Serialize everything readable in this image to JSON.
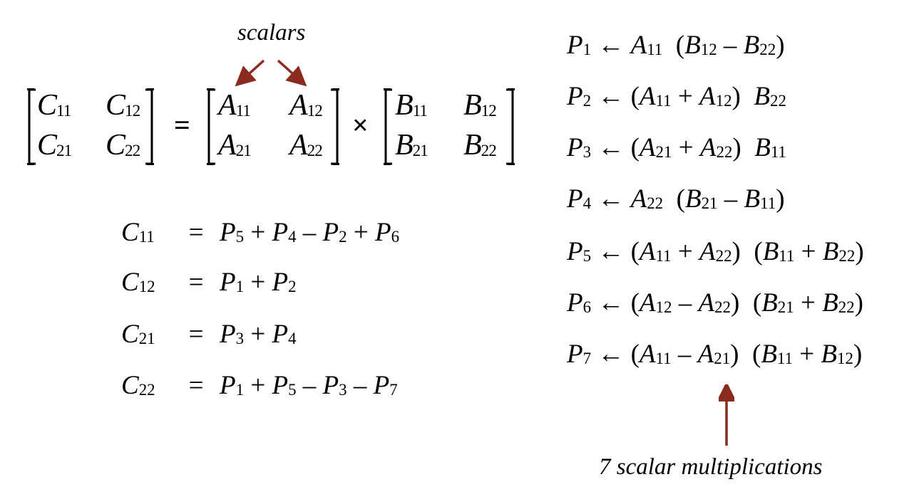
{
  "annotations": {
    "scalars": "scalars",
    "multiplications": "7 scalar multiplications",
    "arrow_color": "#8b2a1e"
  },
  "matrix_equation": {
    "equals": "=",
    "times": "×",
    "C": [
      [
        "C",
        "11",
        "C",
        "12"
      ],
      [
        "C",
        "21",
        "C",
        "22"
      ]
    ],
    "A": [
      [
        "A",
        "11",
        "A",
        "12"
      ],
      [
        "A",
        "21",
        "A",
        "22"
      ]
    ],
    "B": [
      [
        "B",
        "11",
        "B",
        "12"
      ],
      [
        "B",
        "21",
        "B",
        "22"
      ]
    ]
  },
  "c_equations": [
    {
      "lhs_var": "C",
      "lhs_sub": "11",
      "eq": "=",
      "rhs": [
        [
          "P",
          "5",
          " + "
        ],
        [
          "P",
          "4",
          " – "
        ],
        [
          "P",
          "2",
          " + "
        ],
        [
          "P",
          "6",
          ""
        ]
      ]
    },
    {
      "lhs_var": "C",
      "lhs_sub": "12",
      "eq": "=",
      "rhs": [
        [
          "P",
          "1",
          " + "
        ],
        [
          "P",
          "2",
          ""
        ]
      ]
    },
    {
      "lhs_var": "C",
      "lhs_sub": "21",
      "eq": "=",
      "rhs": [
        [
          "P",
          "3",
          " + "
        ],
        [
          "P",
          "4",
          ""
        ]
      ]
    },
    {
      "lhs_var": "C",
      "lhs_sub": "22",
      "eq": "=",
      "rhs": [
        [
          "P",
          "1",
          " + "
        ],
        [
          "P",
          "5",
          " – "
        ],
        [
          "P",
          "3",
          " – "
        ],
        [
          "P",
          "7",
          ""
        ]
      ]
    }
  ],
  "p_definitions": [
    {
      "var": "P",
      "sub": "1",
      "arrow": " ← ",
      "parts": [
        [
          "A",
          "11",
          ""
        ],
        [
          "",
          "",
          "  ("
        ],
        [
          "B",
          "12",
          " – "
        ],
        [
          "B",
          "22",
          ")"
        ]
      ]
    },
    {
      "var": "P",
      "sub": "2",
      "arrow": " ← ",
      "parts": [
        [
          "",
          "",
          "("
        ],
        [
          "A",
          "11",
          " + "
        ],
        [
          "A",
          "12",
          ")  "
        ],
        [
          "B",
          "22",
          ""
        ]
      ]
    },
    {
      "var": "P",
      "sub": "3",
      "arrow": " ← ",
      "parts": [
        [
          "",
          "",
          "("
        ],
        [
          "A",
          "21",
          " + "
        ],
        [
          "A",
          "22",
          ")  "
        ],
        [
          "B",
          "11",
          ""
        ]
      ]
    },
    {
      "var": "P",
      "sub": "4",
      "arrow": " ← ",
      "parts": [
        [
          "A",
          "22",
          ""
        ],
        [
          "",
          "",
          "  ("
        ],
        [
          "B",
          "21",
          " – "
        ],
        [
          "B",
          "11",
          ")"
        ]
      ]
    },
    {
      "var": "P",
      "sub": "5",
      "arrow": " ← ",
      "parts": [
        [
          "",
          "",
          "("
        ],
        [
          "A",
          "11",
          " + "
        ],
        [
          "A",
          "22",
          ")  ("
        ],
        [
          "B",
          "11",
          " + "
        ],
        [
          "B",
          "22",
          ")"
        ]
      ]
    },
    {
      "var": "P",
      "sub": "6",
      "arrow": " ← ",
      "parts": [
        [
          "",
          "",
          "("
        ],
        [
          "A",
          "12",
          " – "
        ],
        [
          "A",
          "22",
          ")  ("
        ],
        [
          "B",
          "21",
          " + "
        ],
        [
          "B",
          "22",
          ")"
        ]
      ]
    },
    {
      "var": "P",
      "sub": "7",
      "arrow": " ← ",
      "parts": [
        [
          "",
          "",
          "("
        ],
        [
          "A",
          "11",
          " – "
        ],
        [
          "A",
          "21",
          ")  ("
        ],
        [
          "B",
          "11",
          " + "
        ],
        [
          "B",
          "12",
          ")"
        ]
      ]
    }
  ]
}
